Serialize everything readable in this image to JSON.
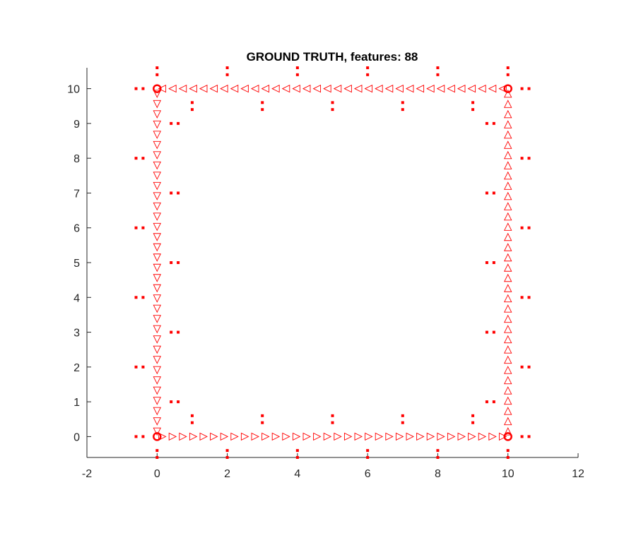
{
  "colors": {
    "marker": "#ff0000",
    "axis": "#262626",
    "background": "#ffffff"
  },
  "chart_data": {
    "type": "scatter",
    "title": "GROUND TRUTH, features: 88",
    "xlabel": "",
    "ylabel": "",
    "xlim": [
      -2,
      12
    ],
    "ylim": [
      -0.6,
      10.6
    ],
    "xticks": [
      -2,
      0,
      2,
      4,
      6,
      8,
      10,
      12
    ],
    "yticks": [
      0,
      1,
      2,
      3,
      4,
      5,
      6,
      7,
      8,
      9,
      10
    ],
    "grid": false,
    "corners": [
      [
        0,
        0
      ],
      [
        0,
        10
      ],
      [
        10,
        10
      ],
      [
        10,
        0
      ]
    ],
    "trajectory": [
      {
        "edge": "bottom",
        "from": [
          0,
          0
        ],
        "to": [
          10,
          0
        ],
        "direction": "right",
        "count": 34
      },
      {
        "edge": "right",
        "from": [
          10,
          0
        ],
        "to": [
          10,
          10
        ],
        "direction": "up",
        "count": 34
      },
      {
        "edge": "top",
        "from": [
          10,
          10
        ],
        "to": [
          0,
          10
        ],
        "direction": "left",
        "count": 34
      },
      {
        "edge": "left",
        "from": [
          0,
          10
        ],
        "to": [
          0,
          0
        ],
        "direction": "down",
        "count": 34
      }
    ],
    "features": [
      [
        -0.6,
        10
      ],
      [
        -0.4,
        10
      ],
      [
        -0.6,
        8
      ],
      [
        -0.4,
        8
      ],
      [
        -0.6,
        6
      ],
      [
        -0.4,
        6
      ],
      [
        -0.6,
        4
      ],
      [
        -0.4,
        4
      ],
      [
        -0.6,
        2
      ],
      [
        -0.4,
        2
      ],
      [
        -0.6,
        0
      ],
      [
        -0.4,
        0
      ],
      [
        0.4,
        9
      ],
      [
        0.6,
        9
      ],
      [
        0.4,
        7
      ],
      [
        0.6,
        7
      ],
      [
        0.4,
        5
      ],
      [
        0.6,
        5
      ],
      [
        0.4,
        3
      ],
      [
        0.6,
        3
      ],
      [
        0.4,
        1
      ],
      [
        0.6,
        1
      ],
      [
        9.4,
        9
      ],
      [
        9.6,
        9
      ],
      [
        9.4,
        7
      ],
      [
        9.6,
        7
      ],
      [
        9.4,
        5
      ],
      [
        9.6,
        5
      ],
      [
        9.4,
        3
      ],
      [
        9.6,
        3
      ],
      [
        9.4,
        1
      ],
      [
        9.6,
        1
      ],
      [
        10.4,
        10
      ],
      [
        10.6,
        10
      ],
      [
        10.4,
        8
      ],
      [
        10.6,
        8
      ],
      [
        10.4,
        6
      ],
      [
        10.6,
        6
      ],
      [
        10.4,
        4
      ],
      [
        10.6,
        4
      ],
      [
        10.4,
        2
      ],
      [
        10.6,
        2
      ],
      [
        10.4,
        0
      ],
      [
        10.6,
        0
      ],
      [
        0,
        10.6
      ],
      [
        0,
        10.4
      ],
      [
        2,
        10.6
      ],
      [
        2,
        10.4
      ],
      [
        4,
        10.6
      ],
      [
        4,
        10.4
      ],
      [
        6,
        10.6
      ],
      [
        6,
        10.4
      ],
      [
        8,
        10.6
      ],
      [
        8,
        10.4
      ],
      [
        10,
        10.6
      ],
      [
        10,
        10.4
      ],
      [
        1,
        9.6
      ],
      [
        1,
        9.4
      ],
      [
        3,
        9.6
      ],
      [
        3,
        9.4
      ],
      [
        5,
        9.6
      ],
      [
        5,
        9.4
      ],
      [
        7,
        9.6
      ],
      [
        7,
        9.4
      ],
      [
        9,
        9.6
      ],
      [
        9,
        9.4
      ],
      [
        1,
        0.6
      ],
      [
        1,
        0.4
      ],
      [
        3,
        0.6
      ],
      [
        3,
        0.4
      ],
      [
        5,
        0.6
      ],
      [
        5,
        0.4
      ],
      [
        7,
        0.6
      ],
      [
        7,
        0.4
      ],
      [
        9,
        0.6
      ],
      [
        9,
        0.4
      ],
      [
        0,
        -0.4
      ],
      [
        0,
        -0.6
      ],
      [
        2,
        -0.4
      ],
      [
        2,
        -0.6
      ],
      [
        4,
        -0.4
      ],
      [
        4,
        -0.6
      ],
      [
        6,
        -0.4
      ],
      [
        6,
        -0.6
      ],
      [
        8,
        -0.4
      ],
      [
        8,
        -0.6
      ],
      [
        10,
        -0.4
      ],
      [
        10,
        -0.6
      ]
    ]
  }
}
